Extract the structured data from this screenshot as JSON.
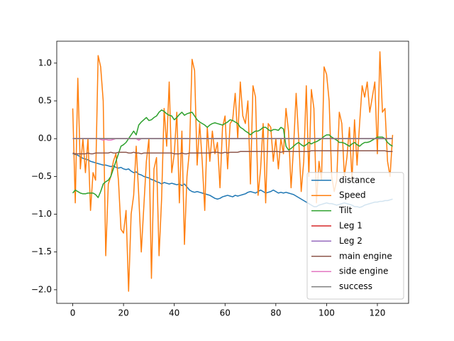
{
  "chart_data": {
    "type": "line",
    "x": [
      0,
      1,
      2,
      3,
      4,
      5,
      6,
      7,
      8,
      9,
      10,
      11,
      12,
      13,
      14,
      15,
      16,
      17,
      18,
      19,
      20,
      21,
      22,
      23,
      24,
      25,
      26,
      27,
      28,
      29,
      30,
      31,
      32,
      33,
      34,
      35,
      36,
      37,
      38,
      39,
      40,
      41,
      42,
      43,
      44,
      45,
      46,
      47,
      48,
      49,
      50,
      51,
      52,
      53,
      54,
      55,
      56,
      57,
      58,
      59,
      60,
      61,
      62,
      63,
      64,
      65,
      66,
      67,
      68,
      69,
      70,
      71,
      72,
      73,
      74,
      75,
      76,
      77,
      78,
      79,
      80,
      81,
      82,
      83,
      84,
      85,
      86,
      87,
      88,
      89,
      90,
      91,
      92,
      93,
      94,
      95,
      96,
      97,
      98,
      99,
      100,
      101,
      102,
      103,
      104,
      105,
      106,
      107,
      108,
      109,
      110,
      111,
      112,
      113,
      114,
      115,
      116,
      117,
      118,
      119,
      120,
      121,
      122,
      123,
      124,
      125,
      126
    ],
    "series": [
      {
        "name": "distance",
        "color": "#1f77b4",
        "values": [
          -0.2,
          -0.21,
          -0.22,
          -0.24,
          -0.26,
          -0.27,
          -0.28,
          -0.3,
          -0.31,
          -0.32,
          -0.33,
          -0.34,
          -0.35,
          -0.35,
          -0.36,
          -0.37,
          -0.36,
          -0.38,
          -0.39,
          -0.38,
          -0.4,
          -0.41,
          -0.4,
          -0.43,
          -0.45,
          -0.44,
          -0.47,
          -0.48,
          -0.5,
          -0.51,
          -0.52,
          -0.54,
          -0.55,
          -0.57,
          -0.58,
          -0.6,
          -0.58,
          -0.59,
          -0.6,
          -0.59,
          -0.6,
          -0.61,
          -0.6,
          -0.62,
          -0.6,
          -0.64,
          -0.68,
          -0.7,
          -0.71,
          -0.7,
          -0.71,
          -0.72,
          -0.73,
          -0.74,
          -0.75,
          -0.77,
          -0.79,
          -0.8,
          -0.79,
          -0.77,
          -0.76,
          -0.75,
          -0.76,
          -0.77,
          -0.75,
          -0.76,
          -0.75,
          -0.74,
          -0.73,
          -0.71,
          -0.7,
          -0.71,
          -0.72,
          -0.7,
          -0.68,
          -0.7,
          -0.72,
          -0.71,
          -0.7,
          -0.68,
          -0.7,
          -0.72,
          -0.71,
          -0.72,
          -0.71,
          -0.72,
          -0.73,
          -0.74,
          -0.76,
          -0.78,
          -0.8,
          -0.82,
          -0.84,
          -0.86,
          -0.88,
          -0.9,
          -0.9,
          -0.88,
          -0.87,
          -0.86,
          -0.85,
          -0.86,
          -0.86,
          -0.87,
          -0.88,
          -0.87,
          -0.86,
          -0.85,
          -0.86,
          -0.87,
          -0.88,
          -0.9,
          -0.9,
          -0.91,
          -0.9,
          -0.88,
          -0.87,
          -0.86,
          -0.85,
          -0.84,
          -0.84,
          -0.83,
          -0.83,
          -0.82,
          -0.82,
          -0.81,
          -0.8
        ]
      },
      {
        "name": "Speed",
        "color": "#ff7f0e",
        "values": [
          0.4,
          -0.85,
          0.8,
          -0.4,
          0.0,
          -0.45,
          0.0,
          -0.95,
          -0.45,
          -0.55,
          1.1,
          0.95,
          0.5,
          -1.55,
          -0.6,
          -0.5,
          -0.3,
          -0.2,
          -0.55,
          -1.2,
          -1.25,
          -0.95,
          -2.02,
          -1.0,
          -0.75,
          -0.1,
          -0.75,
          -1.5,
          -0.9,
          -0.3,
          0.0,
          -1.85,
          -0.4,
          -0.25,
          -1.55,
          -0.8,
          0.4,
          -0.1,
          0.75,
          -0.45,
          -0.2,
          0.35,
          -0.85,
          0.1,
          -1.4,
          -0.5,
          -0.15,
          1.05,
          0.9,
          -0.35,
          0.2,
          -0.3,
          -0.95,
          0.15,
          -0.3,
          0.1,
          -0.2,
          -0.05,
          -0.65,
          0.15,
          0.3,
          -0.4,
          0.2,
          0.25,
          0.6,
          0.0,
          0.75,
          0.3,
          0.2,
          0.5,
          -0.6,
          0.7,
          0.55,
          -0.75,
          -0.4,
          0.2,
          -0.85,
          0.2,
          0.15,
          -0.3,
          0.0,
          -0.4,
          0.0,
          -0.2,
          0.4,
          0.1,
          -0.65,
          -0.1,
          0.6,
          0.0,
          -0.7,
          -0.3,
          0.7,
          -0.5,
          0.65,
          0.4,
          -0.85,
          -0.3,
          -0.55,
          0.95,
          0.85,
          0.5,
          -0.5,
          -0.7,
          -0.55,
          0.35,
          0.2,
          -0.5,
          -0.25,
          0.15,
          -0.55,
          0.25,
          -0.35,
          0.2,
          0.7,
          0.55,
          0.75,
          0.35,
          0.55,
          0.75,
          -0.2,
          1.15,
          0.35,
          0.4,
          -0.3,
          -0.5,
          0.05
        ]
      },
      {
        "name": "Tilt",
        "color": "#2ca02c",
        "values": [
          -0.72,
          -0.68,
          -0.7,
          -0.72,
          -0.73,
          -0.73,
          -0.72,
          -0.72,
          -0.72,
          -0.74,
          -0.78,
          -0.7,
          -0.6,
          -0.57,
          -0.55,
          -0.5,
          -0.4,
          -0.3,
          -0.2,
          -0.1,
          -0.08,
          -0.05,
          0.0,
          0.05,
          0.1,
          0.05,
          0.18,
          0.22,
          0.25,
          0.28,
          0.24,
          0.25,
          0.28,
          0.3,
          0.35,
          0.38,
          0.36,
          0.33,
          0.31,
          0.3,
          0.25,
          0.28,
          0.32,
          0.35,
          0.31,
          0.33,
          0.34,
          0.35,
          0.3,
          0.25,
          0.22,
          0.2,
          0.18,
          0.15,
          0.18,
          0.2,
          0.21,
          0.2,
          0.19,
          0.18,
          0.2,
          0.22,
          0.25,
          0.24,
          0.22,
          0.2,
          0.15,
          0.13,
          0.1,
          0.08,
          0.05,
          0.08,
          0.1,
          0.1,
          0.12,
          0.15,
          0.15,
          0.12,
          0.1,
          0.12,
          0.12,
          0.11,
          0.15,
          0.13,
          -0.1,
          -0.15,
          -0.13,
          -0.1,
          -0.07,
          -0.05,
          -0.08,
          -0.1,
          -0.08,
          -0.05,
          -0.07,
          -0.05,
          -0.04,
          -0.02,
          0.0,
          0.03,
          0.05,
          0.05,
          0.02,
          0.0,
          -0.02,
          -0.05,
          -0.05,
          -0.06,
          -0.08,
          -0.1,
          -0.07,
          -0.05,
          -0.08,
          -0.1,
          -0.07,
          -0.05,
          -0.05,
          -0.04,
          -0.02,
          0.0,
          0.02,
          0.02,
          0.02,
          0.0,
          -0.05,
          -0.08,
          -0.1
        ]
      },
      {
        "name": "Leg 1",
        "color": "#d62728",
        "values": [
          0,
          0,
          0,
          0,
          0,
          0,
          0,
          0,
          0,
          0,
          0,
          0,
          0,
          0,
          0,
          0,
          0,
          0,
          0,
          0,
          0,
          0,
          0,
          0,
          0,
          0,
          0,
          0,
          0,
          0,
          0,
          0,
          0,
          0,
          0,
          0,
          0,
          0,
          0,
          0,
          0,
          0,
          0,
          0,
          0,
          0,
          0,
          0,
          0,
          0,
          0,
          0,
          0,
          0,
          0,
          0,
          0,
          0,
          0,
          0,
          0,
          0,
          0,
          0,
          0,
          0,
          0,
          0,
          0,
          0,
          0,
          0,
          0,
          0,
          0,
          0,
          0,
          0,
          0,
          0,
          0,
          0,
          0,
          0,
          0,
          0,
          0,
          0,
          0,
          0,
          0,
          0,
          0,
          0,
          0,
          0,
          0,
          0,
          0,
          0,
          0,
          0,
          0,
          0,
          0,
          0,
          0,
          0,
          0,
          0,
          0,
          0,
          0,
          0,
          0,
          0,
          0,
          0,
          0,
          0,
          0,
          0,
          0,
          0,
          0,
          0,
          0
        ]
      },
      {
        "name": "Leg 2",
        "color": "#9467bd",
        "values": [
          0,
          0,
          0,
          0,
          0,
          0,
          0,
          0,
          0,
          0,
          0,
          0,
          0,
          0,
          0,
          0,
          0,
          0,
          0,
          0,
          0,
          0,
          0,
          0,
          0,
          0,
          0,
          0,
          0,
          0,
          0,
          0,
          0,
          0,
          0,
          0,
          0,
          0,
          0,
          0,
          0,
          0,
          0,
          0,
          0,
          0,
          0,
          0,
          0,
          0,
          0,
          0,
          0,
          0,
          0,
          0,
          0,
          0,
          0,
          0,
          0,
          0,
          0,
          0,
          0,
          0,
          0,
          0,
          0,
          0,
          0,
          0,
          0,
          0,
          0,
          0,
          0,
          0,
          0,
          0,
          0,
          0,
          0,
          0,
          0,
          0,
          0,
          0,
          0,
          0,
          0,
          0,
          0,
          0,
          0,
          0,
          0,
          0,
          0,
          0,
          0,
          0,
          0,
          0,
          0,
          0,
          0,
          0,
          0,
          0,
          0,
          0,
          0,
          0,
          0,
          0,
          0,
          0,
          0,
          0,
          0,
          0,
          0,
          0,
          0,
          0,
          0
        ]
      },
      {
        "name": "main engine",
        "color": "#8c564b",
        "values": [
          -0.19,
          -0.2,
          -0.2,
          -0.2,
          -0.2,
          -0.2,
          -0.19,
          -0.2,
          -0.2,
          -0.19,
          -0.19,
          -0.19,
          -0.19,
          -0.19,
          -0.19,
          -0.18,
          -0.19,
          -0.19,
          -0.18,
          -0.18,
          -0.18,
          -0.18,
          -0.19,
          -0.19,
          -0.18,
          -0.19,
          -0.19,
          -0.2,
          -0.19,
          -0.19,
          -0.19,
          -0.19,
          -0.19,
          -0.19,
          -0.19,
          -0.19,
          -0.19,
          -0.19,
          -0.19,
          -0.19,
          -0.2,
          -0.2,
          -0.2,
          -0.19,
          -0.2,
          -0.2,
          -0.19,
          -0.19,
          -0.19,
          -0.19,
          -0.19,
          -0.19,
          -0.19,
          -0.19,
          -0.19,
          -0.18,
          -0.18,
          -0.18,
          -0.19,
          -0.19,
          -0.18,
          -0.19,
          -0.18,
          -0.18,
          -0.18,
          -0.18,
          -0.17,
          -0.17,
          -0.17,
          -0.17,
          -0.17,
          -0.17,
          -0.17,
          -0.17,
          -0.17,
          -0.17,
          -0.17,
          -0.17,
          -0.17,
          -0.17,
          -0.17,
          -0.17,
          -0.18,
          -0.17,
          -0.17,
          -0.17,
          -0.17,
          -0.17,
          -0.17,
          -0.17,
          -0.17,
          -0.17,
          -0.17,
          -0.17,
          -0.16,
          -0.16,
          -0.16,
          -0.16,
          -0.16,
          -0.16,
          -0.16,
          -0.16,
          -0.16,
          -0.16,
          -0.16,
          -0.16,
          -0.16,
          -0.16,
          -0.16,
          -0.16,
          -0.16,
          -0.16,
          -0.16,
          -0.16,
          -0.16,
          -0.16,
          -0.16,
          -0.16,
          -0.16,
          -0.16,
          -0.16,
          -0.16,
          -0.16,
          -0.16,
          -0.17,
          -0.17,
          -0.17
        ]
      },
      {
        "name": "side engine",
        "color": "#e377c2",
        "values": [
          0,
          0,
          0,
          0,
          0,
          0,
          0,
          0,
          0,
          0,
          0,
          -0.01,
          -0.02,
          -0.01,
          -0.02,
          -0.02,
          -0.01,
          0,
          0,
          0,
          0,
          0,
          0,
          0,
          0,
          0,
          -0.02,
          0,
          0,
          0,
          0,
          0,
          0,
          0,
          0,
          0,
          0,
          0,
          0,
          0,
          0,
          0,
          0,
          0,
          0,
          0,
          0,
          0,
          0,
          0,
          0,
          0,
          0,
          0,
          0,
          0,
          0,
          0,
          0,
          0,
          0,
          0,
          0,
          0,
          0,
          0,
          0,
          0,
          0,
          0,
          0,
          0,
          0,
          0,
          0,
          0,
          0,
          0,
          0,
          0,
          0,
          0,
          0,
          0,
          0,
          0,
          0,
          0,
          0,
          0,
          0,
          0,
          0,
          0,
          0,
          0,
          0,
          0,
          0,
          0,
          0,
          0,
          0,
          0,
          0,
          0,
          0,
          0,
          0,
          0,
          0,
          0,
          0,
          0,
          0,
          0,
          0,
          0,
          0,
          0,
          0,
          0,
          0,
          0,
          0,
          0,
          0
        ]
      },
      {
        "name": "success",
        "color": "#7f7f7f",
        "values": [
          0,
          0,
          0,
          0,
          0,
          0,
          0,
          0,
          0,
          0,
          0,
          0,
          0,
          0,
          0,
          0,
          0,
          0,
          0,
          0,
          0,
          0,
          0,
          0,
          0,
          0,
          0,
          0,
          0,
          0,
          0,
          0,
          0,
          0,
          0,
          0,
          0,
          0,
          0,
          0,
          0,
          0,
          0,
          0,
          0,
          0,
          0,
          0,
          0,
          0,
          0,
          0,
          0,
          0,
          0,
          0,
          0,
          0,
          0,
          0,
          0,
          0,
          0,
          0,
          0,
          0,
          0,
          0,
          0,
          0,
          0,
          0,
          0,
          0,
          0,
          0,
          0,
          0,
          0,
          0,
          0,
          0,
          0,
          0,
          0,
          0,
          0,
          0,
          0,
          0,
          0,
          0,
          0,
          0,
          0,
          0,
          0,
          0,
          0,
          0,
          0,
          0,
          0,
          0,
          0,
          0,
          0,
          0,
          0,
          0,
          0,
          0,
          0,
          0,
          0,
          0,
          0,
          0,
          0,
          0,
          0,
          0,
          0,
          0,
          0,
          0,
          0
        ]
      }
    ],
    "xlim": [
      -6.3,
      132.3
    ],
    "ylim": [
      -2.18,
      1.29
    ],
    "xticks": [
      0,
      20,
      40,
      60,
      80,
      100,
      120
    ],
    "yticks": [
      {
        "value": -2.0,
        "label": "−2.0"
      },
      {
        "value": -1.5,
        "label": "−1.5"
      },
      {
        "value": -1.0,
        "label": "−1.0"
      },
      {
        "value": -0.5,
        "label": "−0.5"
      },
      {
        "value": 0.0,
        "label": "0.0"
      },
      {
        "value": 0.5,
        "label": "0.5"
      },
      {
        "value": 1.0,
        "label": "1.0"
      }
    ],
    "legend": "lower right",
    "grid": false
  }
}
